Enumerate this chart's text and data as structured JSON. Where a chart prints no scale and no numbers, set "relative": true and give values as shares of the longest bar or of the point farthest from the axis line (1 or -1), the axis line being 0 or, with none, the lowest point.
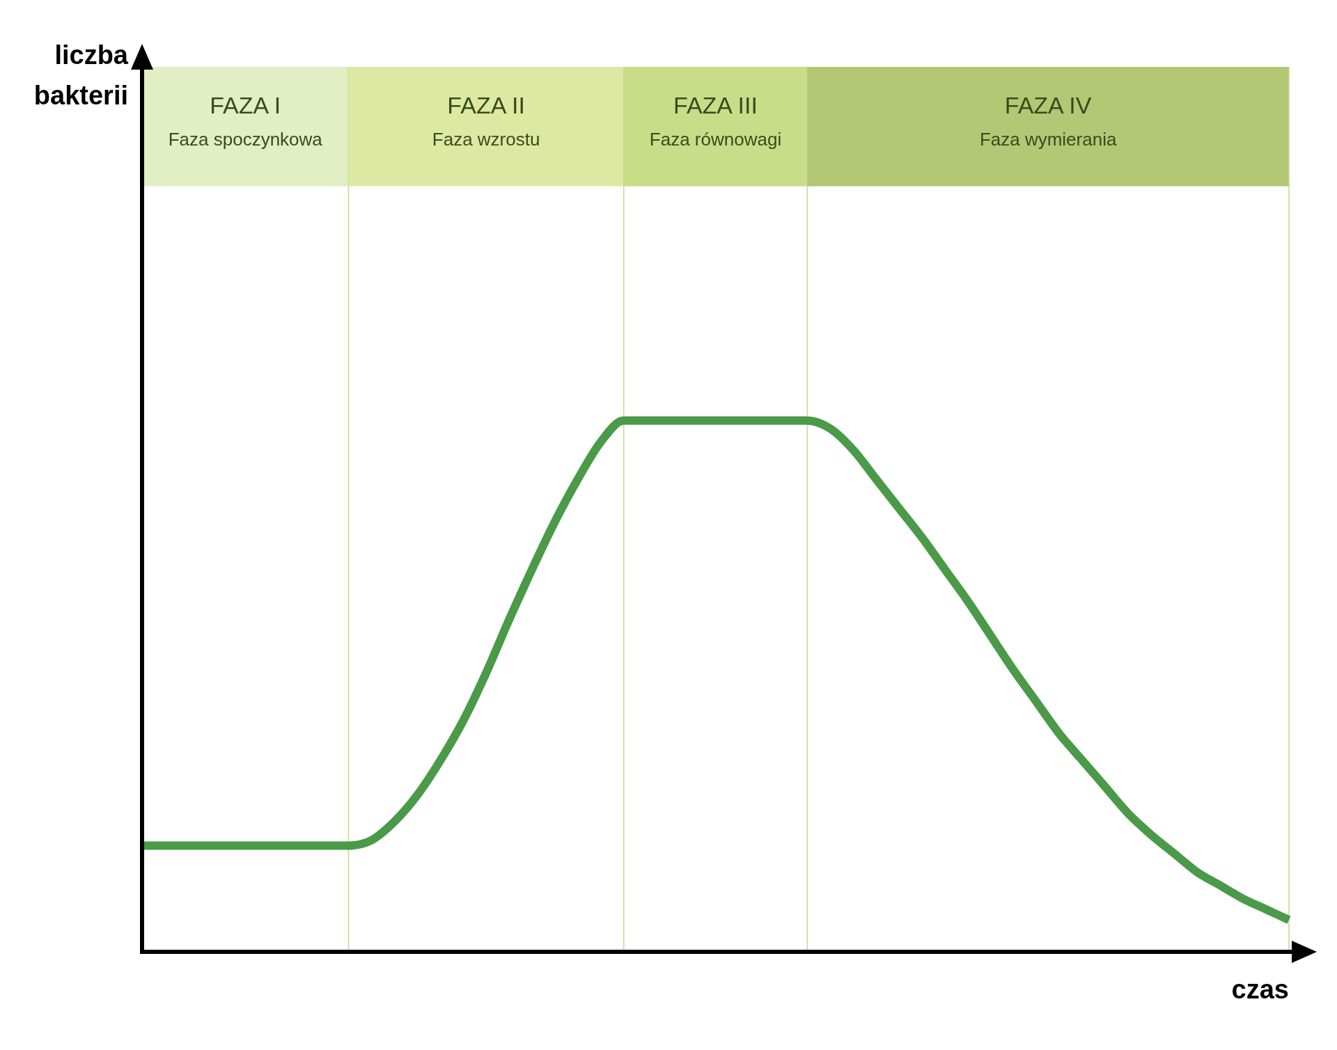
{
  "chart_data": {
    "type": "line",
    "xlabel": "czas",
    "relative": true,
    "legend": false,
    "marker": "none",
    "line_style": "solid",
    "categories": [
      null,
      null,
      null,
      null,
      null,
      null,
      null,
      null,
      null,
      null,
      null,
      null,
      null,
      null,
      null,
      null,
      null,
      null,
      null,
      null,
      null,
      null,
      null,
      null,
      null,
      null,
      null,
      null,
      null,
      null,
      null,
      null,
      null,
      null,
      null,
      null,
      null,
      null,
      null,
      null,
      null,
      null,
      null,
      null,
      null,
      null,
      null,
      null,
      null,
      null,
      null
    ],
    "series": [
      {
        "color": "#4a9a48",
        "values": [
          0.2,
          0.2,
          0.2,
          0.2,
          0.2,
          0.2,
          0.2,
          0.2,
          0.2,
          0.2,
          0.21,
          0.245,
          0.295,
          0.36,
          0.435,
          0.525,
          0.625,
          0.72,
          0.81,
          0.89,
          0.96,
          1,
          1,
          1,
          1,
          1,
          1,
          1,
          1,
          1,
          0.985,
          0.945,
          0.89,
          0.835,
          0.78,
          0.72,
          0.66,
          0.595,
          0.53,
          0.47,
          0.41,
          0.36,
          0.31,
          0.26,
          0.22,
          0.185,
          0.15,
          0.125,
          0.1,
          0.08,
          0.06
        ]
      }
    ],
    "grid": "x",
    "annotations": [
      "liczba bakterii",
      "FAZA I",
      "Faza spoczynkowa",
      "FAZA II",
      "Faza wzrostu",
      "FAZA III",
      "Faza równowagi",
      "FAZA IV",
      "Faza wymierania"
    ]
  }
}
